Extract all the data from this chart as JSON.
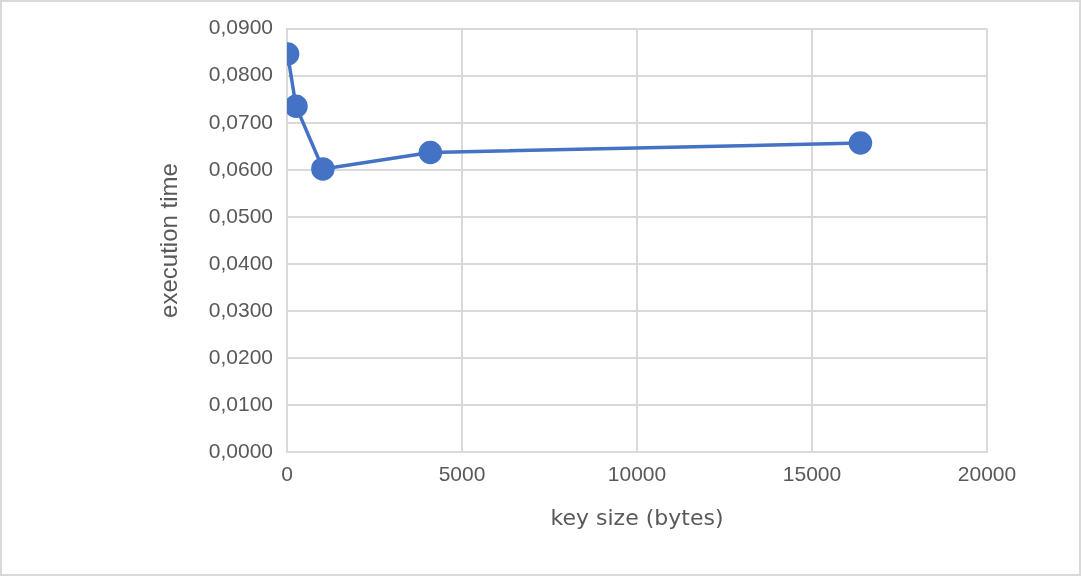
{
  "chart_data": {
    "type": "line",
    "xlabel": "key size (bytes)",
    "ylabel": "execution time",
    "x": [
      16,
      256,
      1024,
      4096,
      16384
    ],
    "series": [
      {
        "color": "#4472c4",
        "values": [
          0.0846,
          0.0735,
          0.0602,
          0.0637,
          0.0657
        ]
      }
    ],
    "xlim": [
      0,
      20000
    ],
    "xticks": [
      0,
      5000,
      10000,
      15000,
      20000
    ],
    "ylim": [
      0,
      0.09
    ],
    "yticks": [
      {
        "value": 0,
        "label": "0,0000"
      },
      {
        "value": 0.01,
        "label": "0,0100"
      },
      {
        "value": 0.02,
        "label": "0,0200"
      },
      {
        "value": 0.03,
        "label": "0,0300"
      },
      {
        "value": 0.04,
        "label": "0,0400"
      },
      {
        "value": 0.05,
        "label": "0,0500"
      },
      {
        "value": 0.06,
        "label": "0,0600"
      },
      {
        "value": 0.07,
        "label": "0,0700"
      },
      {
        "value": 0.08,
        "label": "0,0800"
      },
      {
        "value": 0.09,
        "label": "0,0900"
      }
    ],
    "grid": true,
    "legend": false,
    "marker": "circle",
    "line_style": "solid"
  }
}
